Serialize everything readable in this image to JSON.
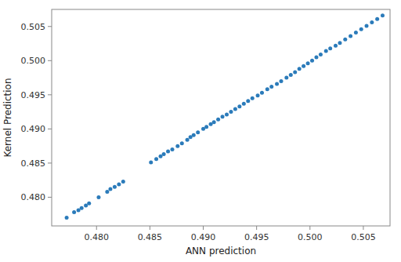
{
  "chart_data": {
    "type": "scatter",
    "xlabel": "ANN prediction",
    "ylabel": "Kernel Prediction",
    "color": "#2b7bba",
    "x": [
      0.4772,
      0.4779,
      0.4783,
      0.4786,
      0.479,
      0.4793,
      0.4802,
      0.481,
      0.4813,
      0.4817,
      0.4821,
      0.4825,
      0.4851,
      0.4856,
      0.486,
      0.4863,
      0.4867,
      0.4871,
      0.4876,
      0.488,
      0.4885,
      0.4888,
      0.4891,
      0.4895,
      0.49,
      0.4903,
      0.4907,
      0.491,
      0.4914,
      0.4918,
      0.4922,
      0.4926,
      0.493,
      0.4934,
      0.4938,
      0.4942,
      0.4946,
      0.4951,
      0.4955,
      0.496,
      0.4964,
      0.4969,
      0.4973,
      0.4978,
      0.4982,
      0.4986,
      0.499,
      0.4994,
      0.4998,
      0.5002,
      0.5006,
      0.501,
      0.5015,
      0.5019,
      0.5024,
      0.5028,
      0.5033,
      0.5038,
      0.5043,
      0.5048,
      0.5053,
      0.5058,
      0.5063,
      0.5068
    ],
    "y": [
      0.477,
      0.4778,
      0.4781,
      0.4784,
      0.4788,
      0.4791,
      0.48,
      0.4808,
      0.4812,
      0.4815,
      0.4819,
      0.4823,
      0.4851,
      0.4856,
      0.486,
      0.4863,
      0.4867,
      0.487,
      0.4875,
      0.4879,
      0.4884,
      0.4888,
      0.4891,
      0.4895,
      0.49,
      0.4903,
      0.4907,
      0.491,
      0.4914,
      0.4918,
      0.4921,
      0.4925,
      0.4929,
      0.4933,
      0.4937,
      0.4941,
      0.4945,
      0.4949,
      0.4953,
      0.4958,
      0.4962,
      0.4966,
      0.497,
      0.4975,
      0.4979,
      0.4983,
      0.4988,
      0.4992,
      0.4996,
      0.5,
      0.5005,
      0.5009,
      0.5014,
      0.5018,
      0.5022,
      0.5026,
      0.5031,
      0.5036,
      0.5041,
      0.5046,
      0.5051,
      0.5056,
      0.5061,
      0.5066
    ],
    "xlim": [
      0.4758,
      0.5075
    ],
    "ylim": [
      0.4758,
      0.5075
    ],
    "xticks": [
      {
        "value": 0.48,
        "label": "0.480"
      },
      {
        "value": 0.485,
        "label": "0.485"
      },
      {
        "value": 0.49,
        "label": "0.490"
      },
      {
        "value": 0.495,
        "label": "0.495"
      },
      {
        "value": 0.5,
        "label": "0.500"
      },
      {
        "value": 0.505,
        "label": "0.505"
      }
    ],
    "yticks": [
      {
        "value": 0.48,
        "label": "0.480"
      },
      {
        "value": 0.485,
        "label": "0.485"
      },
      {
        "value": 0.49,
        "label": "0.490"
      },
      {
        "value": 0.495,
        "label": "0.495"
      },
      {
        "value": 0.5,
        "label": "0.500"
      },
      {
        "value": 0.505,
        "label": "0.505"
      }
    ]
  }
}
